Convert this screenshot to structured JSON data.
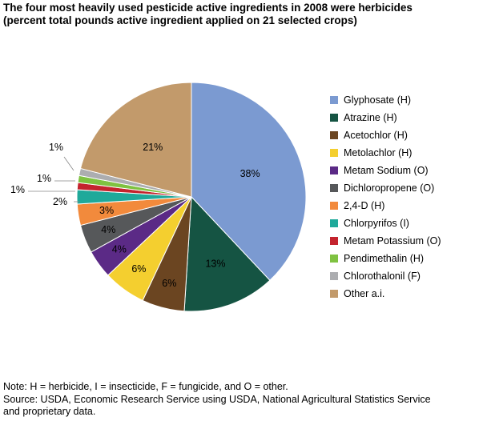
{
  "title": {
    "line1": "The four most heavily used pesticide active ingredients in 2008 were herbicides",
    "line2": "(percent total pounds active ingredient applied on 21 selected crops)"
  },
  "chart_data": {
    "type": "pie",
    "start_angle_deg": 0,
    "direction": "clockwise",
    "slices": [
      {
        "name": "Glyphosate (H)",
        "value": 38,
        "label": "38%",
        "color": "#7b9ad1"
      },
      {
        "name": "Atrazine (H)",
        "value": 13,
        "label": "13%",
        "color": "#155443"
      },
      {
        "name": "Acetochlor (H)",
        "value": 6,
        "label": "6%",
        "color": "#6b4521"
      },
      {
        "name": "Metolachlor (H)",
        "value": 6,
        "label": "6%",
        "color": "#f4cf2f"
      },
      {
        "name": "Metam Sodium (O)",
        "value": 4,
        "label": "4%",
        "color": "#5b2a86"
      },
      {
        "name": "Dichloropropene (O)",
        "value": 4,
        "label": "4%",
        "color": "#56585a"
      },
      {
        "name": "2,4-D (H)",
        "value": 3,
        "label": "3%",
        "color": "#f28a3c"
      },
      {
        "name": "Chlorpyrifos (I)",
        "value": 2,
        "label": "2%",
        "color": "#1fa99a"
      },
      {
        "name": "Metam Potassium (O)",
        "value": 1,
        "label": "1%",
        "color": "#c4242e"
      },
      {
        "name": "Pendimethalin (H)",
        "value": 1,
        "label": "1%",
        "color": "#7fc241"
      },
      {
        "name": "Chlorothalonil (F)",
        "value": 1,
        "label": "1%",
        "color": "#acadb0"
      },
      {
        "name": "Other a.i.",
        "value": 21,
        "label": "21%",
        "color": "#c29a6b"
      }
    ]
  },
  "footer": {
    "note": "Note: H = herbicide, I = insecticide, F = fungicide, and O = other.",
    "source_line1": "Source: USDA, Economic Research Service using USDA, National Agricultural Statistics Service",
    "source_line2": "and proprietary data."
  }
}
